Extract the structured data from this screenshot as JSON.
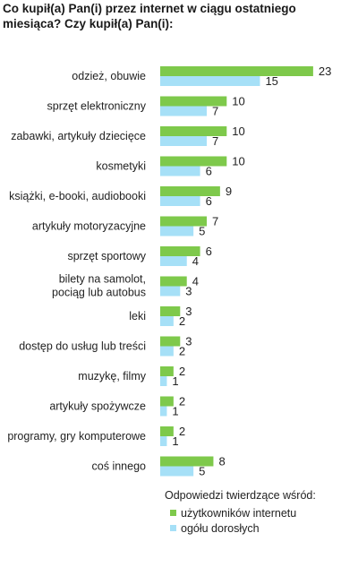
{
  "title": "Co kupił(a) Pan(i) przez internet w ciągu ostatniego miesiąca? Czy kupił(a) Pan(i):",
  "colors": {
    "internet_users": "#7ec94b",
    "all_adults": "#a6e0f7"
  },
  "chart_data": {
    "type": "bar",
    "orientation": "horizontal",
    "categories": [
      [
        "odzież, obuwie"
      ],
      [
        "sprzęt elektroniczny"
      ],
      [
        "zabawki, artykuły dziecięce"
      ],
      [
        "kosmetyki"
      ],
      [
        "książki, e-booki, audiobooki"
      ],
      [
        "artykuły motoryzacyjne"
      ],
      [
        "sprzęt sportowy"
      ],
      [
        "bilety na samolot,",
        "pociąg lub autobus"
      ],
      [
        "leki"
      ],
      [
        "dostęp do usług lub treści"
      ],
      [
        "muzykę, filmy"
      ],
      [
        "artykuły spożywcze"
      ],
      [
        "programy, gry komputerowe"
      ],
      [
        "coś innego"
      ]
    ],
    "series": [
      {
        "name": "użytkowników internetu",
        "values": [
          23,
          10,
          10,
          10,
          9,
          7,
          6,
          4,
          3,
          3,
          2,
          2,
          2,
          8
        ]
      },
      {
        "name": "ogółu dorosłych",
        "values": [
          15,
          7,
          7,
          6,
          6,
          5,
          4,
          3,
          2,
          2,
          1,
          1,
          1,
          5
        ]
      }
    ],
    "legend_title": "Odpowiedzi twierdzące wśród:",
    "legend_position": "bottom-right"
  }
}
